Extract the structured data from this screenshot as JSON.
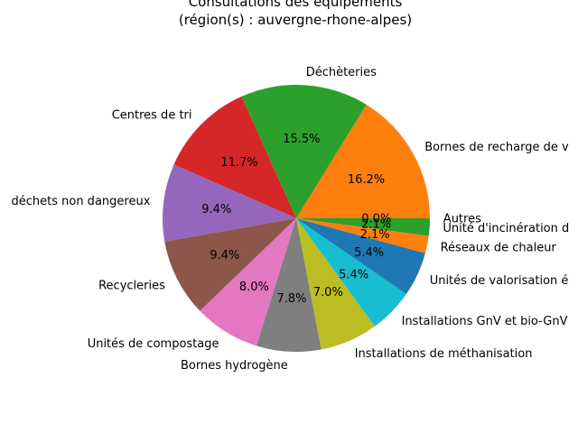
{
  "chart_data": {
    "type": "pie",
    "title": "Consultations des équipements",
    "subtitle": "(région(s) : auvergne-rhone-alpes)",
    "start_angle_deg": 0,
    "direction": "counterclockwise",
    "slices": [
      {
        "label": "Bornes de recharge de v",
        "value": 16.2,
        "pct_label": "16.2%",
        "color": "#ff7f0e"
      },
      {
        "label": "Déchèteries",
        "value": 15.5,
        "pct_label": "15.5%",
        "color": "#2ca02c"
      },
      {
        "label": "Centres de tri",
        "value": 11.7,
        "pct_label": "11.7%",
        "color": "#d62728"
      },
      {
        "label": "déchets non dangereux",
        "value": 9.4,
        "pct_label": "9.4%",
        "color": "#9467bd"
      },
      {
        "label": "Recycleries",
        "value": 9.4,
        "pct_label": "9.4%",
        "color": "#8c564b"
      },
      {
        "label": "Unités de compostage",
        "value": 8.0,
        "pct_label": "8.0%",
        "color": "#e377c2"
      },
      {
        "label": "Bornes hydrogène",
        "value": 7.8,
        "pct_label": "7.8%",
        "color": "#7f7f7f"
      },
      {
        "label": "Installations de méthanisation",
        "value": 7.0,
        "pct_label": "7.0%",
        "color": "#bcbd22"
      },
      {
        "label": "Installations GnV et bio-GnV",
        "value": 5.4,
        "pct_label": "5.4%",
        "color": "#17becf"
      },
      {
        "label": "Unités de valorisation é",
        "value": 5.4,
        "pct_label": "5.4%",
        "color": "#1f77b4"
      },
      {
        "label": "Réseaux de chaleur",
        "value": 2.1,
        "pct_label": "2.1%",
        "color": "#ff7f0e"
      },
      {
        "label": "Unité d'incinération d",
        "value": 2.1,
        "pct_label": "2.1%",
        "color": "#2ca02c"
      },
      {
        "label": "Autres",
        "value": 0.0,
        "pct_label": "0.0%",
        "color": "#d62728"
      }
    ]
  }
}
